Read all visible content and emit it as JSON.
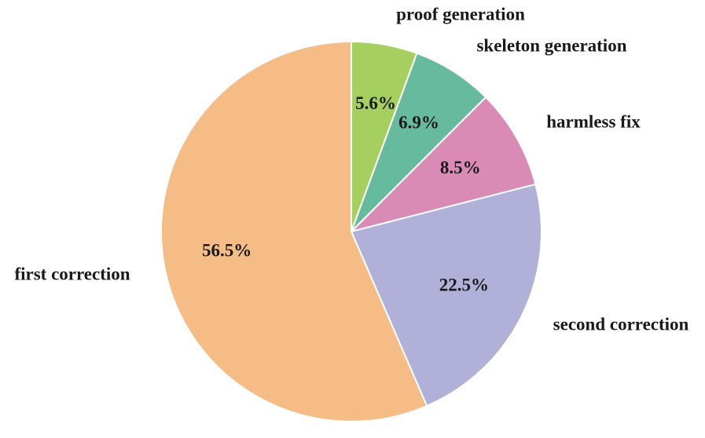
{
  "chart_data": {
    "type": "pie",
    "title": "",
    "slices": [
      {
        "name": "proof generation",
        "value": 5.6,
        "label": "5.6%",
        "color": "#a5cf5e"
      },
      {
        "name": "skeleton generation",
        "value": 6.9,
        "label": "6.9%",
        "color": "#66bb9f"
      },
      {
        "name": "harmless fix",
        "value": 8.5,
        "label": "8.5%",
        "color": "#d98ab5"
      },
      {
        "name": "second correction",
        "value": 22.5,
        "label": "22.5%",
        "color": "#b0b0d8"
      },
      {
        "name": "first correction",
        "value": 56.5,
        "label": "56.5%",
        "color": "#f5bc85"
      }
    ],
    "start_angle": "12 o'clock",
    "direction": "clockwise",
    "legend": "none"
  }
}
